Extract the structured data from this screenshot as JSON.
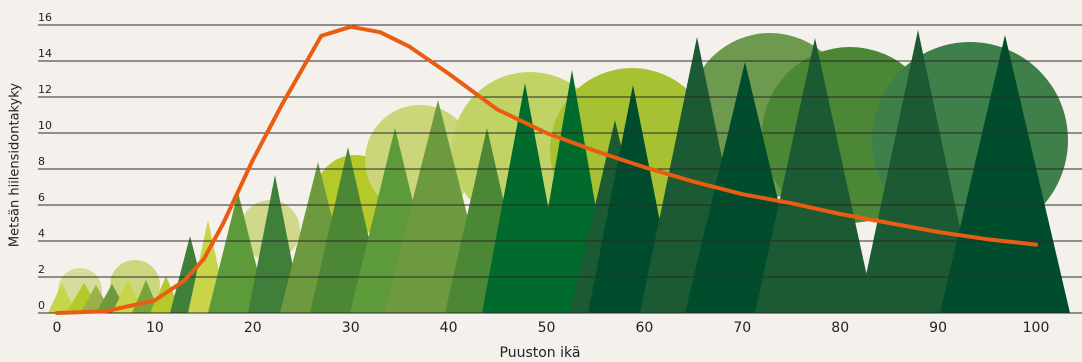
{
  "chart_data": {
    "type": "line",
    "x_label": "Puuston ikä",
    "y_label": "Metsän hiilensidontakyky",
    "x": [
      0,
      5,
      10,
      13,
      15,
      17,
      20,
      23,
      25,
      27,
      30,
      33,
      36,
      40,
      45,
      50,
      55,
      60,
      65,
      70,
      75,
      80,
      85,
      90,
      95,
      100
    ],
    "series": [
      {
        "color": "#e85d12",
        "values": [
          0,
          0.1,
          0.7,
          1.8,
          3,
          5,
          8.5,
          11.6,
          13.5,
          15.4,
          15.9,
          15.6,
          14.8,
          13.3,
          11.3,
          10,
          9,
          8.1,
          7.3,
          6.6,
          6.1,
          5.5,
          5,
          4.5,
          4.1,
          3.8
        ]
      }
    ],
    "xlim": [
      0,
      100
    ],
    "xticks": [
      0,
      10,
      20,
      30,
      40,
      50,
      60,
      70,
      80,
      90,
      100
    ],
    "ylim": [
      0,
      16
    ],
    "yticks": [
      0,
      2,
      4,
      6,
      8,
      10,
      12,
      14,
      16
    ],
    "grid": true
  }
}
